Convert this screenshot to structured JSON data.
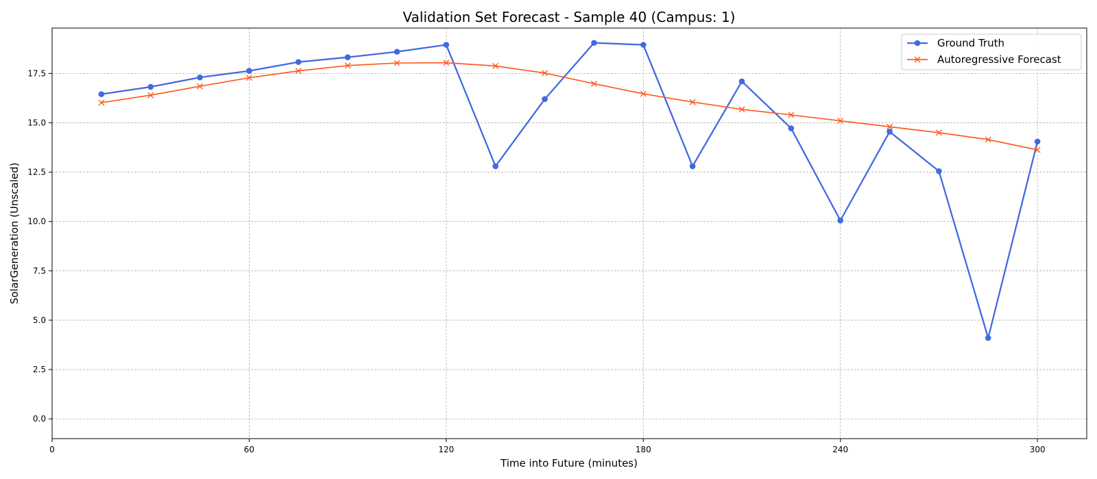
{
  "chart_data": {
    "type": "line",
    "title": "Validation Set Forecast - Sample 40 (Campus: 1)",
    "xlabel": "Time into Future (minutes)",
    "ylabel": "SolarGeneration (Unscaled)",
    "xlim": [
      0,
      315
    ],
    "ylim": [
      -1,
      19.8
    ],
    "xticks": [
      0,
      60,
      120,
      180,
      240,
      300
    ],
    "xtick_labels": [
      "0",
      "60",
      "120",
      "180",
      "240",
      "300"
    ],
    "yticks": [
      0,
      2.5,
      5,
      7.5,
      10,
      12.5,
      15,
      17.5
    ],
    "ytick_labels": [
      "0.0",
      "2.5",
      "5.0",
      "7.5",
      "10.0",
      "12.5",
      "15.0",
      "17.5"
    ],
    "grid": true,
    "legend_position": "top-right",
    "x": [
      15,
      30,
      45,
      60,
      75,
      90,
      105,
      120,
      135,
      150,
      165,
      180,
      195,
      210,
      225,
      240,
      255,
      270,
      285,
      300
    ],
    "series": [
      {
        "name": "Ground Truth",
        "color": "#4169e1",
        "marker": "circle",
        "values": [
          16.45,
          16.82,
          17.3,
          17.63,
          18.08,
          18.32,
          18.6,
          18.95,
          12.8,
          16.2,
          19.05,
          18.95,
          12.8,
          17.1,
          14.72,
          10.05,
          14.55,
          12.55,
          4.1,
          14.05
        ]
      },
      {
        "name": "Autoregressive Forecast",
        "color": "#ff5a1f",
        "marker": "x",
        "values": [
          16.02,
          16.4,
          16.85,
          17.28,
          17.63,
          17.9,
          18.03,
          18.04,
          17.88,
          17.52,
          16.98,
          16.47,
          16.05,
          15.68,
          15.4,
          15.1,
          14.8,
          14.5,
          14.15,
          13.63
        ]
      }
    ]
  }
}
